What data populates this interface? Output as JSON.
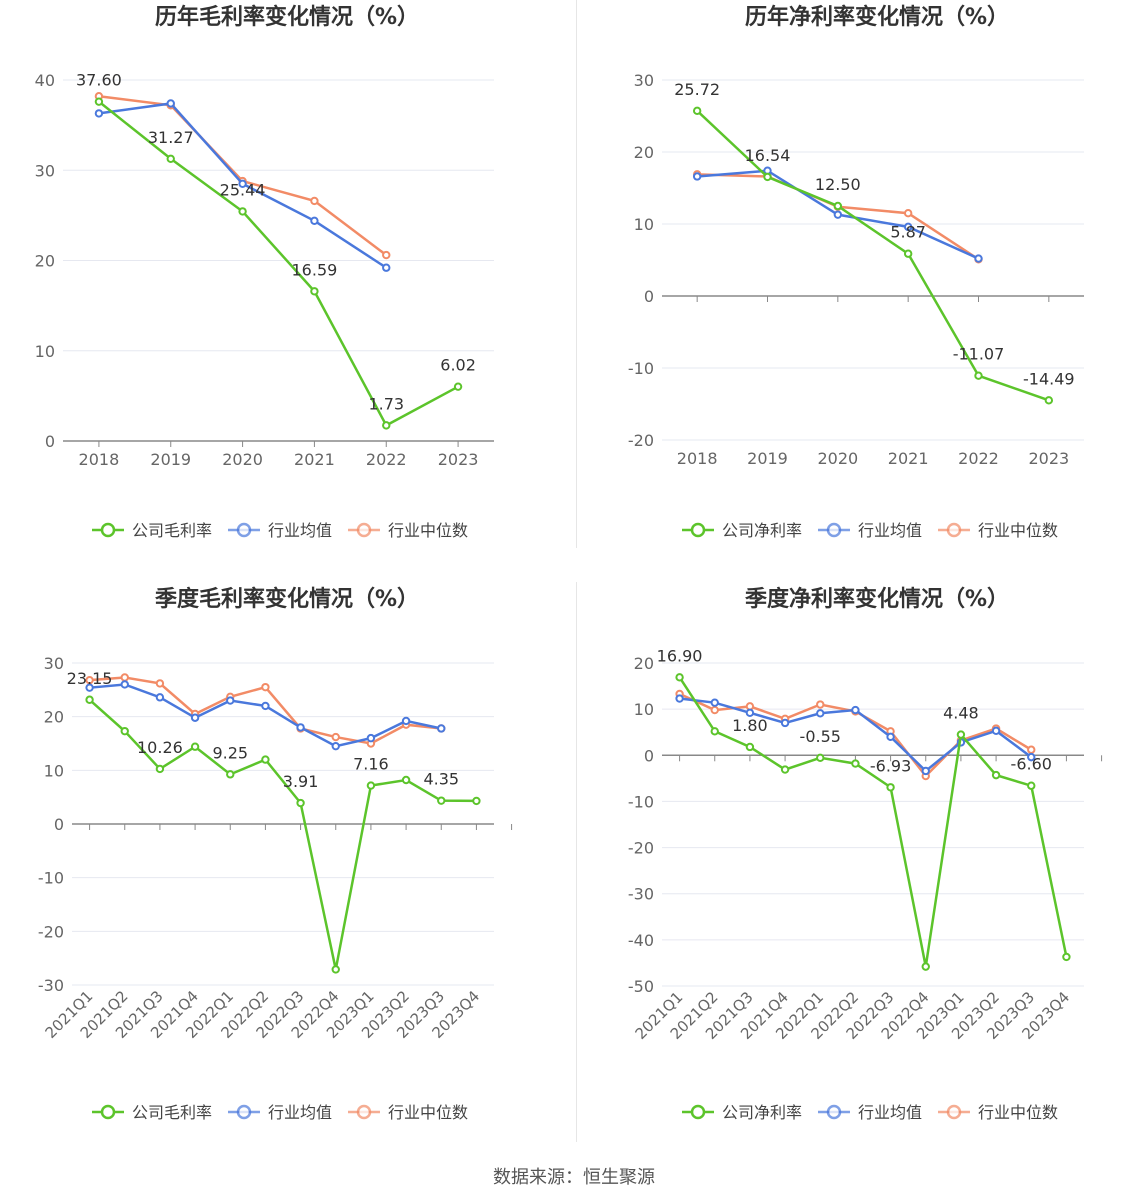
{
  "colors": {
    "company": "#5cc42b",
    "industry_avg": "#4a78dc",
    "industry_median": "#f28b66",
    "grid": "#e6e8f0",
    "axis_text": "#666666"
  },
  "source": "数据来源：恒生聚源",
  "chart_data": [
    {
      "type": "line",
      "title": "历年毛利率变化情况（%）",
      "categories": [
        "2018",
        "2019",
        "2020",
        "2021",
        "2022",
        "2023"
      ],
      "ylim": [
        0,
        40
      ],
      "yticks": [
        0,
        10,
        20,
        30,
        40
      ],
      "legend_position": "bottom",
      "series": [
        {
          "name": "公司毛利率",
          "key": "company",
          "values": [
            37.6,
            31.27,
            25.44,
            16.59,
            1.73,
            6.02
          ],
          "labels": [
            "37.60",
            "31.27",
            "25.44",
            "16.59",
            "1.73",
            "6.02"
          ]
        },
        {
          "name": "行业均值",
          "key": "industry_avg",
          "values": [
            36.3,
            37.4,
            28.5,
            24.4,
            19.2,
            null
          ]
        },
        {
          "name": "行业中位数",
          "key": "industry_median",
          "values": [
            38.2,
            37.2,
            28.8,
            26.6,
            20.6,
            null
          ]
        }
      ]
    },
    {
      "type": "line",
      "title": "历年净利率变化情况（%）",
      "categories": [
        "2018",
        "2019",
        "2020",
        "2021",
        "2022",
        "2023"
      ],
      "ylim": [
        -20,
        30
      ],
      "yticks": [
        -20,
        -10,
        0,
        10,
        20,
        30
      ],
      "legend_position": "bottom",
      "series": [
        {
          "name": "公司净利率",
          "key": "company",
          "values": [
            25.72,
            16.54,
            12.5,
            5.87,
            -11.07,
            -14.49
          ],
          "labels": [
            "25.72",
            "16.54",
            "12.50",
            "5.87",
            "-11.07",
            "-14.49"
          ]
        },
        {
          "name": "行业均值",
          "key": "industry_avg",
          "values": [
            16.6,
            17.4,
            11.3,
            9.6,
            5.2,
            null
          ]
        },
        {
          "name": "行业中位数",
          "key": "industry_median",
          "values": [
            16.9,
            16.6,
            12.4,
            11.5,
            5.1,
            null
          ]
        }
      ]
    },
    {
      "type": "line",
      "title": "季度毛利率变化情况（%）",
      "categories": [
        "2021Q1",
        "2021Q2",
        "2021Q3",
        "2021Q4",
        "2022Q1",
        "2022Q2",
        "2022Q3",
        "2022Q4",
        "2023Q1",
        "2023Q2",
        "2023Q3",
        "2023Q4"
      ],
      "ylim": [
        -30,
        30
      ],
      "yticks": [
        -30,
        -20,
        -10,
        0,
        10,
        20,
        30
      ],
      "legend_position": "bottom",
      "series": [
        {
          "name": "公司毛利率",
          "key": "company",
          "values": [
            23.15,
            17.3,
            10.26,
            14.4,
            9.25,
            12.0,
            3.91,
            -27.1,
            7.16,
            8.2,
            4.35,
            4.3
          ],
          "labels": [
            "23.15",
            "",
            "10.26",
            "",
            "9.25",
            "",
            "3.91",
            "",
            "7.16",
            "",
            "4.35",
            ""
          ]
        },
        {
          "name": "行业均值",
          "key": "industry_avg",
          "values": [
            25.4,
            26.0,
            23.6,
            19.8,
            23.0,
            22.0,
            18.0,
            14.5,
            16.0,
            19.2,
            17.8,
            null
          ]
        },
        {
          "name": "行业中位数",
          "key": "industry_median",
          "values": [
            26.8,
            27.3,
            26.2,
            20.5,
            23.7,
            25.5,
            17.8,
            16.2,
            15.0,
            18.5,
            17.8,
            null
          ]
        }
      ]
    },
    {
      "type": "line",
      "title": "季度净利率变化情况（%）",
      "categories": [
        "2021Q1",
        "2021Q2",
        "2021Q3",
        "2021Q4",
        "2022Q1",
        "2022Q2",
        "2022Q3",
        "2022Q4",
        "2023Q1",
        "2023Q2",
        "2023Q3",
        "2023Q4"
      ],
      "ylim": [
        -50,
        20
      ],
      "yticks": [
        -50,
        -40,
        -30,
        -20,
        -10,
        0,
        10,
        20
      ],
      "legend_position": "bottom",
      "series": [
        {
          "name": "公司净利率",
          "key": "company",
          "values": [
            16.9,
            5.2,
            1.8,
            -3.1,
            -0.55,
            -1.8,
            -6.93,
            -45.8,
            4.48,
            -4.3,
            -6.6,
            -43.7
          ],
          "labels": [
            "16.90",
            "",
            "1.80",
            "",
            "-0.55",
            "",
            "-6.93",
            "",
            "4.48",
            "",
            "-6.60",
            ""
          ]
        },
        {
          "name": "行业均值",
          "key": "industry_avg",
          "values": [
            12.3,
            11.4,
            9.2,
            7.0,
            9.1,
            9.8,
            4.0,
            -3.4,
            2.8,
            5.3,
            -0.4,
            null
          ]
        },
        {
          "name": "行业中位数",
          "key": "industry_median",
          "values": [
            13.3,
            9.8,
            10.6,
            7.9,
            11.0,
            9.5,
            5.2,
            -4.5,
            3.2,
            5.8,
            1.2,
            null
          ]
        }
      ]
    }
  ]
}
